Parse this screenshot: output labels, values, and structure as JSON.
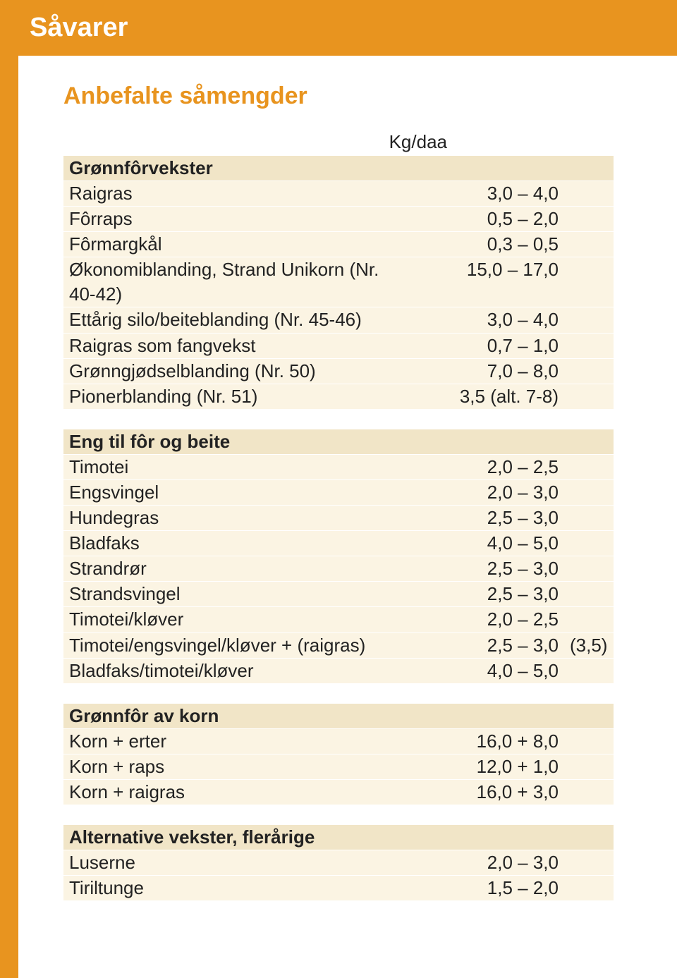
{
  "colors": {
    "orange": "#e8941f",
    "section_bg": "#f1e5c7",
    "row_bg": "#fbf4e3",
    "text": "#222222",
    "white": "#ffffff"
  },
  "header": {
    "title": "Såvarer"
  },
  "subtitle": "Anbefalte såmengder",
  "unit_header": "Kg/daa",
  "sections": [
    {
      "title": "Grønnfôrvekster",
      "rows": [
        {
          "label": "Raigras",
          "value": "3,0 – 4,0"
        },
        {
          "label": "Fôrraps",
          "value": "0,5 – 2,0"
        },
        {
          "label": "Fôrmargkål",
          "value": "0,3 – 0,5"
        },
        {
          "label": "Økonomiblanding, Strand Unikorn (Nr. 40-42)",
          "value": "15,0 – 17,0"
        },
        {
          "label": "Ettårig silo/beiteblanding (Nr. 45-46)",
          "value": "3,0 – 4,0"
        },
        {
          "label": "Raigras som fangvekst",
          "value": "0,7 – 1,0"
        },
        {
          "label": "Grønngjødselblanding (Nr. 50)",
          "value": "7,0 – 8,0"
        },
        {
          "label": "Pionerblanding (Nr. 51)",
          "value": "3,5  (alt. 7-8)"
        }
      ]
    },
    {
      "title": "Eng til fôr og beite",
      "rows": [
        {
          "label": "Timotei",
          "value": "2,0 – 2,5"
        },
        {
          "label": "Engsvingel",
          "value": "2,0 – 3,0"
        },
        {
          "label": "Hundegras",
          "value": "2,5 – 3,0"
        },
        {
          "label": "Bladfaks",
          "value": "4,0 – 5,0"
        },
        {
          "label": "Strandrør",
          "value": "2,5 – 3,0"
        },
        {
          "label": "Strandsvingel",
          "value": "2,5 – 3,0"
        },
        {
          "label": "Timotei/kløver",
          "value": "2,0 – 2,5"
        },
        {
          "label": "Timotei/engsvingel/kløver + (raigras)",
          "value": "2,5 – 3,0",
          "extra": "(3,5)"
        },
        {
          "label": "Bladfaks/timotei/kløver",
          "value": "4,0 – 5,0"
        }
      ]
    },
    {
      "title": "Grønnfôr av korn",
      "rows": [
        {
          "label": "Korn + erter",
          "value": "16,0 + 8,0"
        },
        {
          "label": "Korn + raps",
          "value": "12,0 + 1,0"
        },
        {
          "label": "Korn + raigras",
          "value": "16,0 + 3,0"
        }
      ]
    },
    {
      "title": "Alternative vekster, flerårige",
      "rows": [
        {
          "label": "Luserne",
          "value": "2,0 – 3,0"
        },
        {
          "label": "Tiriltunge",
          "value": "1,5 – 2,0"
        }
      ]
    }
  ]
}
